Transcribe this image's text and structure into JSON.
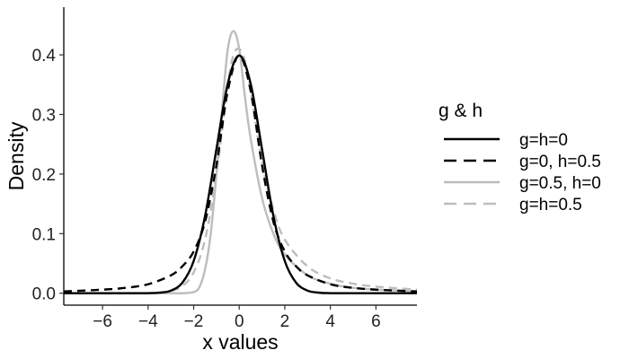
{
  "chart_data": {
    "type": "line",
    "xlabel": "x values",
    "ylabel": "Density",
    "xlim": [
      -7.7,
      7.8
    ],
    "ylim": [
      -0.02,
      0.48
    ],
    "x_ticks": [
      -6,
      -4,
      -2,
      0,
      2,
      4,
      6
    ],
    "x_tick_labels": [
      "−6",
      "−4",
      "−2",
      "0",
      "2",
      "4",
      "6"
    ],
    "y_ticks": [
      0.0,
      0.1,
      0.2,
      0.3,
      0.4
    ],
    "y_tick_labels": [
      "0.0",
      "0.1",
      "0.2",
      "0.3",
      "0.4"
    ],
    "grid": false,
    "legend": {
      "title": "g & h",
      "position": "right"
    },
    "series": [
      {
        "name": "g=h=0",
        "color": "#000000",
        "dash": "solid",
        "x": [
          -7.7,
          -6,
          -5,
          -4,
          -3.5,
          -3,
          -2.5,
          -2,
          -1.5,
          -1,
          -0.5,
          0,
          0.5,
          1,
          1.5,
          2,
          2.5,
          3,
          3.5,
          4,
          5,
          6,
          7.8
        ],
        "y": [
          0.0,
          0.0,
          0.0,
          0.0001,
          0.0009,
          0.0044,
          0.0175,
          0.054,
          0.1295,
          0.242,
          0.352,
          0.399,
          0.352,
          0.242,
          0.1295,
          0.054,
          0.0175,
          0.0044,
          0.0009,
          0.0001,
          0.0,
          0.0,
          0.0
        ]
      },
      {
        "name": "g=0, h=0.5",
        "color": "#000000",
        "dash": "dashed",
        "x": [
          -7.7,
          -6,
          -5,
          -4,
          -3,
          -2.5,
          -2,
          -1.5,
          -1,
          -0.5,
          0,
          0.5,
          1,
          1.5,
          2,
          2.5,
          3,
          4,
          5,
          6,
          7.8
        ],
        "y": [
          0.003,
          0.006,
          0.009,
          0.015,
          0.03,
          0.045,
          0.07,
          0.12,
          0.215,
          0.34,
          0.399,
          0.34,
          0.215,
          0.12,
          0.07,
          0.045,
          0.03,
          0.015,
          0.009,
          0.006,
          0.003
        ]
      },
      {
        "name": "g=0.5, h=0",
        "color": "#bdbdbd",
        "dash": "solid",
        "x": [
          -7.7,
          -3,
          -2.5,
          -2,
          -1.75,
          -1.5,
          -1.25,
          -1,
          -0.75,
          -0.5,
          -0.25,
          0,
          0.25,
          0.5,
          1,
          1.5,
          2,
          3,
          4,
          5,
          6,
          7.8
        ],
        "y": [
          0.0,
          0.0,
          0.0,
          0.002,
          0.01,
          0.04,
          0.1,
          0.2,
          0.31,
          0.41,
          0.44,
          0.41,
          0.33,
          0.26,
          0.16,
          0.1,
          0.065,
          0.03,
          0.016,
          0.009,
          0.006,
          0.003
        ]
      },
      {
        "name": "g=h=0.5",
        "color": "#bdbdbd",
        "dash": "dashed",
        "x": [
          -7.7,
          -4,
          -3,
          -2.5,
          -2,
          -1.5,
          -1,
          -0.5,
          -0.25,
          0,
          0.25,
          0.5,
          1,
          1.5,
          2,
          3,
          4,
          5,
          6,
          7.8
        ],
        "y": [
          0.0,
          0.0,
          0.004,
          0.012,
          0.035,
          0.09,
          0.2,
          0.35,
          0.4,
          0.41,
          0.39,
          0.34,
          0.22,
          0.14,
          0.09,
          0.045,
          0.025,
          0.016,
          0.011,
          0.006
        ]
      }
    ]
  }
}
